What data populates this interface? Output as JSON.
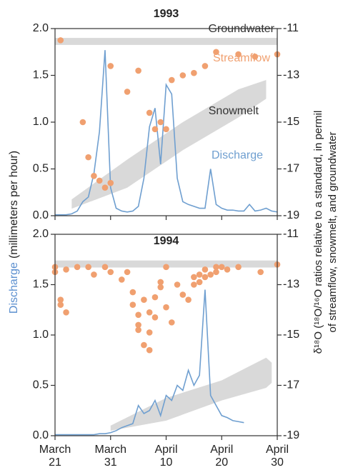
{
  "y_label": [
    "Discharge",
    "(millimeters per hour)"
  ],
  "y2_label": [
    "δ¹⁸O (¹⁸O/¹⁶O ratios relative to a standard, in permil",
    "of streamflow, snowmelt, and groundwater"
  ],
  "chart_data": [
    {
      "type": "combo",
      "title": "1993",
      "xlim": [
        "03-21",
        "04-30"
      ],
      "ylim": [
        0,
        2
      ],
      "y2lim": [
        -19,
        -11
      ],
      "yticks": [
        {
          "value": 0,
          "label": "0.0"
        },
        0.5,
        {
          "value": 1,
          "label": "1.0"
        },
        1.5,
        {
          "value": 2,
          "label": "2.0"
        }
      ],
      "y2ticks": [
        -11,
        -13,
        -15,
        -17,
        -19
      ],
      "series": [
        {
          "name": "Groundwater",
          "type": "band",
          "axis": "y2",
          "color": "#d9d9d9",
          "range": [
            -11.7,
            -11.4
          ]
        },
        {
          "name": "Snowmelt",
          "type": "area",
          "axis": "y2",
          "color": "#d9d9d9",
          "x": [
            "03-24",
            "04-03",
            "04-13",
            "04-23",
            "04-28"
          ],
          "upper": [
            -18.3,
            -16.6,
            -15.0,
            -13.6,
            -13.2
          ],
          "lower": [
            -18.7,
            -17.8,
            -16.2,
            -14.8,
            -14.0
          ]
        },
        {
          "name": "Discharge",
          "type": "line",
          "axis": "y",
          "color": "#6f9fd0",
          "x": [
            "03-21",
            "03-22",
            "03-23",
            "03-24",
            "03-25",
            "03-26",
            "03-27",
            "03-28",
            "03-29",
            "03-30",
            "03-31",
            "04-01",
            "04-02",
            "04-03",
            "04-04",
            "04-05",
            "04-06",
            "04-07",
            "04-08",
            "04-09",
            "04-10",
            "04-11",
            "04-12",
            "04-13",
            "04-14",
            "04-15",
            "04-16",
            "04-17",
            "04-18",
            "04-19",
            "04-20",
            "04-21",
            "04-22",
            "04-23",
            "04-24",
            "04-25",
            "04-26",
            "04-27",
            "04-28",
            "04-29",
            "04-30"
          ],
          "values": [
            0.01,
            0.01,
            0.01,
            0.02,
            0.05,
            0.15,
            0.2,
            0.45,
            0.9,
            1.77,
            0.3,
            0.08,
            0.05,
            0.04,
            0.05,
            0.1,
            0.4,
            0.95,
            1.15,
            0.55,
            1.4,
            1.3,
            0.4,
            0.15,
            0.12,
            0.1,
            0.08,
            0.08,
            0.5,
            0.12,
            0.08,
            0.06,
            0.06,
            0.05,
            0.05,
            0.12,
            0.05,
            0.06,
            0.08,
            0.05,
            0.04
          ]
        },
        {
          "name": "Streamflow",
          "type": "scatter",
          "axis": "y2",
          "color": "#f0a070",
          "x": [
            "03-22",
            "03-26",
            "03-27",
            "03-28",
            "03-29",
            "03-30",
            "03-31",
            "03-31",
            "04-03",
            "04-05",
            "04-07",
            "04-08",
            "04-09",
            "04-10",
            "04-11",
            "04-13",
            "04-15",
            "04-17",
            "04-19",
            "04-23",
            "04-26",
            "04-30"
          ],
          "values": [
            -11.5,
            -15.0,
            -16.5,
            -17.3,
            -17.5,
            -17.8,
            -17.6,
            -12.6,
            -13.7,
            -12.8,
            -14.6,
            -15.3,
            -15.0,
            -15.3,
            -13.2,
            -13.0,
            -12.9,
            -12.6,
            -12.0,
            -12.1,
            -12.2,
            -12.1
          ]
        }
      ]
    },
    {
      "type": "combo",
      "title": "1994",
      "xlim": [
        "03-21",
        "04-30"
      ],
      "ylim": [
        0,
        2
      ],
      "y2lim": [
        -19,
        -11
      ],
      "yticks": [
        {
          "value": 0,
          "label": "0.0"
        },
        0.5,
        {
          "value": 1,
          "label": "1.0"
        },
        1.5,
        {
          "value": 2,
          "label": "2.0"
        }
      ],
      "y2ticks": [
        -11,
        -13,
        -15,
        -17,
        -19
      ],
      "xticks": [
        {
          "value": "03-21",
          "label": [
            "March",
            "21"
          ]
        },
        {
          "value": "03-31",
          "label": [
            "March",
            "31"
          ]
        },
        {
          "value": "04-10",
          "label": [
            "April",
            "10"
          ]
        },
        {
          "value": "04-20",
          "label": [
            "April",
            "20"
          ]
        },
        {
          "value": "04-30",
          "label": [
            "April",
            "30"
          ]
        }
      ],
      "series": [
        {
          "type": "band",
          "axis": "y2",
          "color": "#d9d9d9",
          "range": [
            -12.32,
            -12.04
          ]
        },
        {
          "type": "area",
          "axis": "y2",
          "color": "#d9d9d9",
          "x": [
            "03-31",
            "04-10",
            "04-20",
            "04-28",
            "04-29"
          ],
          "upper": [
            -18.6,
            -17.5,
            -16.8,
            -15.9,
            -16.1
          ],
          "lower": [
            -18.8,
            -18.4,
            -17.6,
            -17.1,
            -16.9
          ]
        },
        {
          "type": "line",
          "axis": "y",
          "color": "#6f9fd0",
          "x": [
            "03-21",
            "03-22",
            "03-23",
            "03-24",
            "03-25",
            "03-26",
            "03-27",
            "03-28",
            "03-29",
            "03-30",
            "03-31",
            "04-01",
            "04-02",
            "04-03",
            "04-04",
            "04-05",
            "04-06",
            "04-07",
            "04-08",
            "04-09",
            "04-10",
            "04-11",
            "04-12",
            "04-13",
            "04-14",
            "04-15",
            "04-16",
            "04-17",
            "04-18",
            "04-19",
            "04-20",
            "04-21",
            "04-22",
            "04-23",
            "04-24"
          ],
          "values": [
            0.01,
            0.01,
            0.01,
            0.01,
            0.01,
            0.01,
            0.01,
            0.01,
            0.02,
            0.02,
            0.03,
            0.05,
            0.08,
            0.1,
            0.12,
            0.3,
            0.22,
            0.25,
            0.35,
            0.2,
            0.4,
            0.35,
            0.5,
            0.45,
            0.65,
            0.5,
            0.6,
            1.45,
            0.4,
            0.3,
            0.2,
            0.18,
            0.15,
            0.14,
            0.13
          ]
        },
        {
          "type": "scatter",
          "axis": "y2",
          "color": "#f0a070",
          "x": [
            "03-21",
            "03-21",
            "03-22",
            "03-22",
            "03-23",
            "03-23",
            "03-25",
            "03-27",
            "03-28",
            "03-30",
            "03-31",
            "04-02",
            "04-03",
            "04-04",
            "04-04",
            "04-05",
            "04-05",
            "04-05",
            "04-06",
            "04-06",
            "04-07",
            "04-07",
            "04-07",
            "04-08",
            "04-08",
            "04-09",
            "04-09",
            "04-10",
            "04-10",
            "04-11",
            "04-12",
            "04-13",
            "04-14",
            "04-15",
            "04-15",
            "04-16",
            "04-16",
            "04-17",
            "04-17",
            "04-18",
            "04-19",
            "04-19",
            "04-20",
            "04-21",
            "04-23",
            "04-27",
            "04-30"
          ],
          "values": [
            -12.3,
            -12.5,
            -13.8,
            -13.6,
            -14.1,
            -12.4,
            -12.3,
            -12.3,
            -12.6,
            -12.3,
            -12.5,
            -12.8,
            -12.5,
            -13.3,
            -13.8,
            -14.2,
            -14.6,
            -14.8,
            -13.6,
            -15.4,
            -14.1,
            -14.9,
            -15.6,
            -13.5,
            -14.3,
            -13.1,
            -12.9,
            -13.9,
            -12.3,
            -14.5,
            -13.0,
            -13.4,
            -13.6,
            -13.0,
            -12.7,
            -12.9,
            -12.6,
            -12.7,
            -12.4,
            -12.6,
            -12.5,
            -12.3,
            -12.3,
            -12.4,
            -12.3,
            -12.5,
            -12.2
          ]
        }
      ]
    }
  ]
}
